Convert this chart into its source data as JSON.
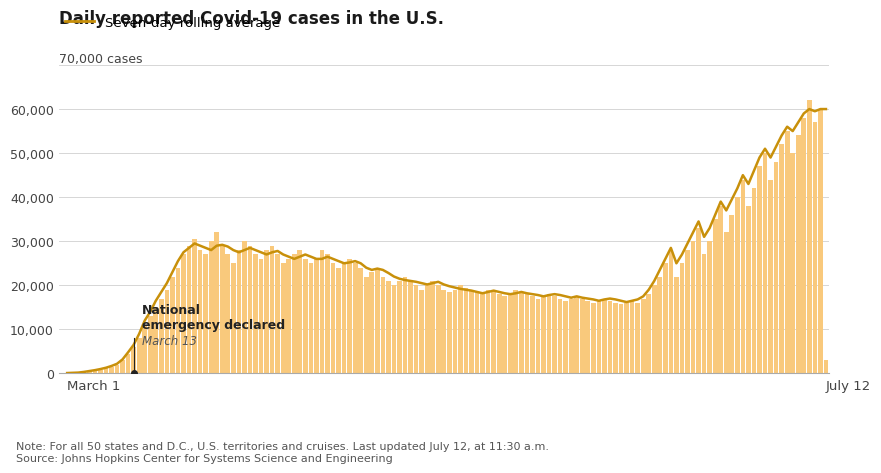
{
  "title": "Daily reported Covid-19 cases in the U.S.",
  "legend_label": "Seven-day rolling average",
  "ylabel_top": "70,000 cases",
  "xlabel_left": "March 1",
  "xlabel_right": "July 12",
  "note": "Note: For all 50 states and D.C., U.S. territories and cruises. Last updated July 12, at 11:30 a.m.",
  "source": "Source: Johns Hopkins Center for Systems Science and Engineering",
  "annotation_line1": "National",
  "annotation_line2": "emergency declared",
  "annotation_date": "March 13",
  "bar_color": "#F9C97C",
  "line_color": "#C8900A",
  "annotation_dot_color": "#222222",
  "background_color": "#ffffff",
  "grid_color": "#d0d0d0",
  "ylim": [
    0,
    70000
  ],
  "yticks": [
    0,
    10000,
    20000,
    30000,
    40000,
    50000,
    60000,
    70000
  ],
  "ytick_labels": [
    "0",
    "10,000",
    "20,000",
    "30,000",
    "40,000",
    "50,000",
    "60,000",
    ""
  ],
  "daily_cases": [
    100,
    150,
    200,
    300,
    500,
    700,
    900,
    1200,
    1500,
    2000,
    3000,
    4500,
    6000,
    8000,
    11000,
    13000,
    15000,
    17000,
    19000,
    22000,
    24000,
    27000,
    29000,
    30500,
    28000,
    27000,
    30000,
    32000,
    29000,
    27000,
    25000,
    28000,
    30000,
    29000,
    27000,
    26000,
    28000,
    29000,
    27000,
    25000,
    26000,
    27000,
    28000,
    26000,
    25000,
    26000,
    28000,
    27000,
    25000,
    24000,
    25000,
    26000,
    25000,
    24000,
    22000,
    23000,
    24000,
    22000,
    21000,
    20000,
    21000,
    22000,
    21000,
    20000,
    19000,
    20000,
    21000,
    20000,
    19000,
    18500,
    19000,
    20000,
    19500,
    19000,
    18500,
    18000,
    19000,
    18500,
    18000,
    17500,
    18000,
    19000,
    18500,
    18000,
    17500,
    17000,
    17500,
    18000,
    17500,
    17000,
    16500,
    17000,
    17500,
    17000,
    16500,
    16000,
    16500,
    17000,
    16500,
    16000,
    15800,
    16000,
    16500,
    16000,
    17000,
    18000,
    20000,
    22000,
    25000,
    28000,
    22000,
    25000,
    28000,
    30000,
    33000,
    27000,
    30000,
    35000,
    38000,
    32000,
    36000,
    40000,
    44000,
    38000,
    42000,
    47000,
    50000,
    44000,
    48000,
    52000,
    55000,
    50000,
    54000,
    58000,
    62000,
    57000,
    60000,
    3000
  ],
  "rolling_avg": [
    100,
    150,
    200,
    350,
    550,
    750,
    1000,
    1300,
    1700,
    2200,
    3200,
    4800,
    6500,
    9000,
    12000,
    14000,
    16500,
    18500,
    20500,
    23000,
    25500,
    27500,
    28500,
    29500,
    29000,
    28500,
    28000,
    29000,
    29200,
    28800,
    28000,
    27500,
    28000,
    28500,
    28000,
    27500,
    27000,
    27500,
    27800,
    27000,
    26500,
    26000,
    26500,
    27000,
    26500,
    26000,
    26000,
    26500,
    26000,
    25500,
    25000,
    25200,
    25500,
    25000,
    24000,
    23500,
    23800,
    23500,
    22800,
    22000,
    21500,
    21200,
    21000,
    20800,
    20500,
    20200,
    20500,
    20800,
    20200,
    19800,
    19500,
    19200,
    19000,
    18800,
    18500,
    18200,
    18500,
    18800,
    18500,
    18200,
    18000,
    18200,
    18500,
    18200,
    18000,
    17800,
    17500,
    17800,
    18000,
    17800,
    17500,
    17200,
    17500,
    17200,
    17000,
    16800,
    16500,
    16800,
    17000,
    16800,
    16500,
    16200,
    16500,
    16800,
    17500,
    19000,
    21000,
    23500,
    26000,
    28500,
    25000,
    27000,
    29500,
    32000,
    34500,
    31000,
    33000,
    36000,
    39000,
    37000,
    39500,
    42000,
    45000,
    43000,
    46000,
    49000,
    51000,
    49000,
    51500,
    54000,
    56000,
    55000,
    57000,
    59000,
    60000,
    59500,
    60000,
    60000
  ],
  "march13_idx": 12,
  "title_fontsize": 12,
  "legend_fontsize": 9.5,
  "tick_fontsize": 9,
  "note_fontsize": 8
}
